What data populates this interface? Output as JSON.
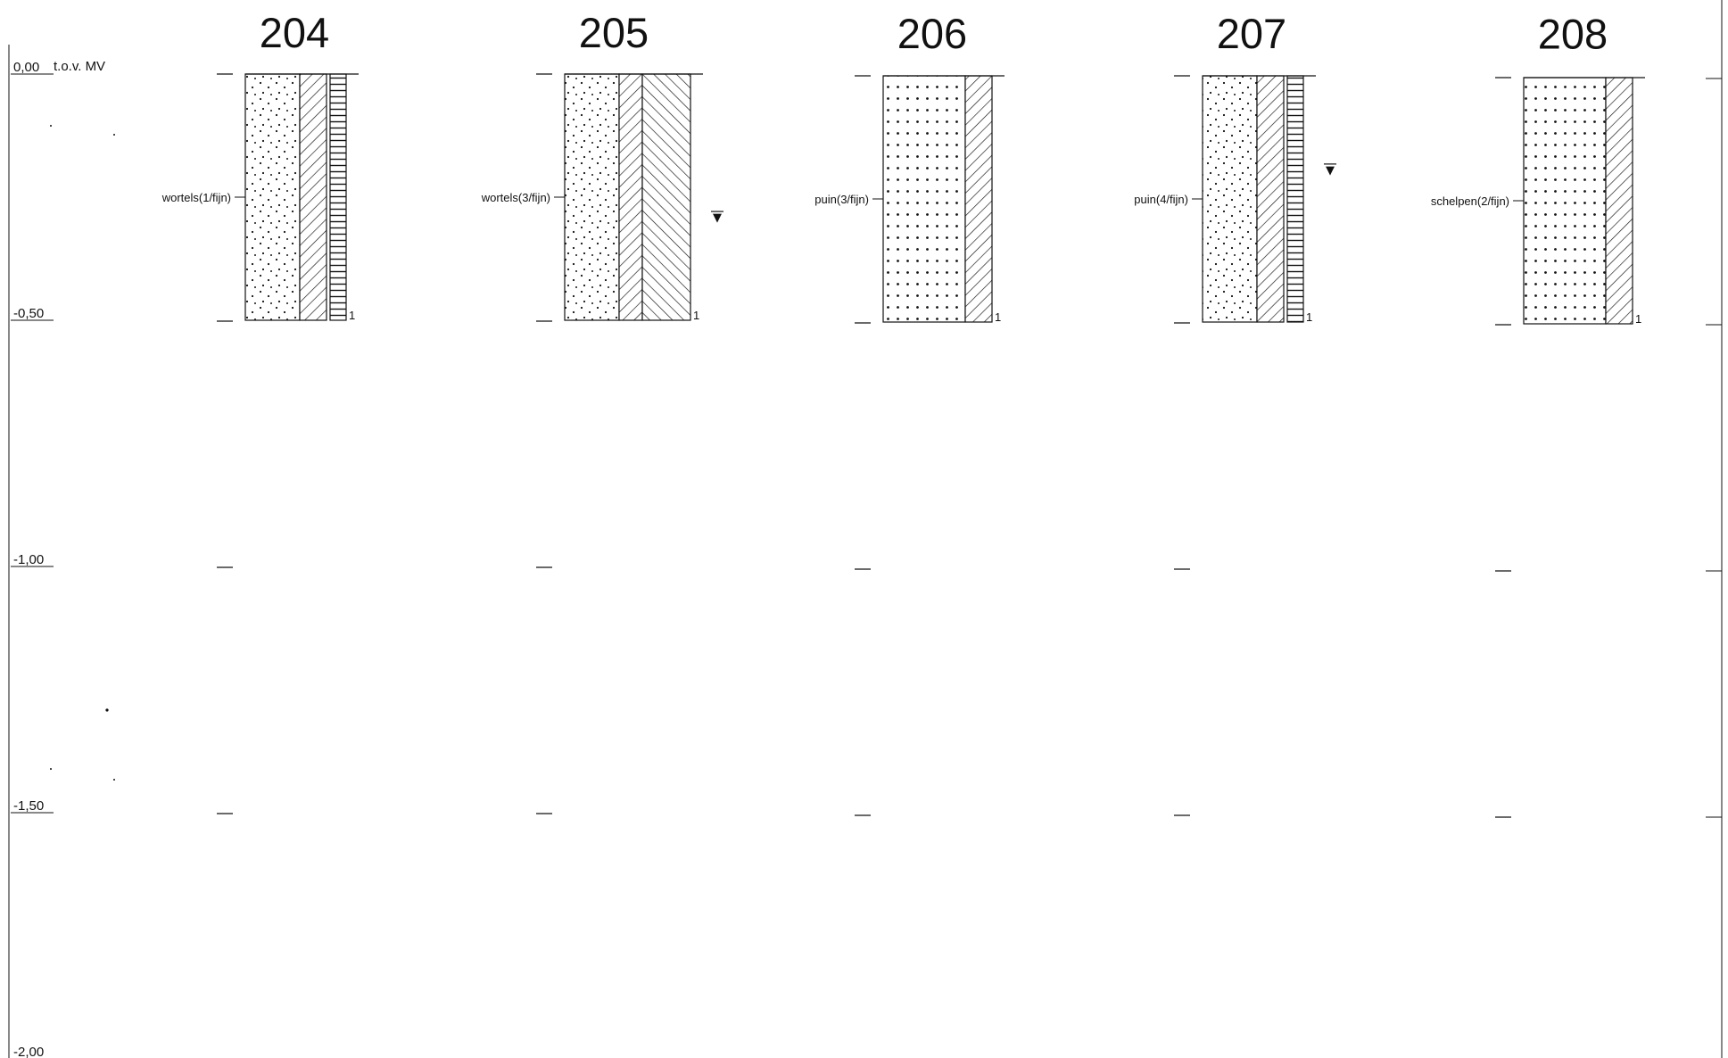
{
  "datum_label": "t.o.v. MV",
  "depth_scale": [
    "0,00",
    "-0,50",
    "-1,00",
    "-1,50",
    "-2,00"
  ],
  "groundwater_symbol": "▼",
  "colors": {
    "ink": "#111111",
    "paper": "#ffffff"
  },
  "boreholes": [
    {
      "id": "204",
      "annotation": "wortels(1/fijn)",
      "layer_number": "1",
      "layer_bottom_m": -0.5,
      "lithology": "sparse-dots",
      "columns": [
        "diag-hatch",
        "horizontal-lines"
      ],
      "groundwater_m": null
    },
    {
      "id": "205",
      "annotation": "wortels(3/fijn)",
      "layer_number": "1",
      "layer_bottom_m": -0.5,
      "lithology": "sparse-dots",
      "columns": [
        "diag-hatch",
        "chevron-hatch"
      ],
      "groundwater_m": -0.29
    },
    {
      "id": "206",
      "annotation": "puin(3/fijn)",
      "layer_number": "1",
      "layer_bottom_m": -0.5,
      "lithology": "dense-dots",
      "columns": [
        "diag-hatch"
      ],
      "groundwater_m": null
    },
    {
      "id": "207",
      "annotation": "puin(4/fijn)",
      "layer_number": "1",
      "layer_bottom_m": -0.5,
      "lithology": "sparse-dots",
      "columns": [
        "diag-hatch",
        "horizontal-lines"
      ],
      "groundwater_m": -0.19
    },
    {
      "id": "208",
      "annotation": "schelpen(2/fijn)",
      "layer_number": "1",
      "layer_bottom_m": -0.5,
      "lithology": "dense-dots",
      "columns": [
        "diag-hatch"
      ],
      "groundwater_m": null
    }
  ]
}
